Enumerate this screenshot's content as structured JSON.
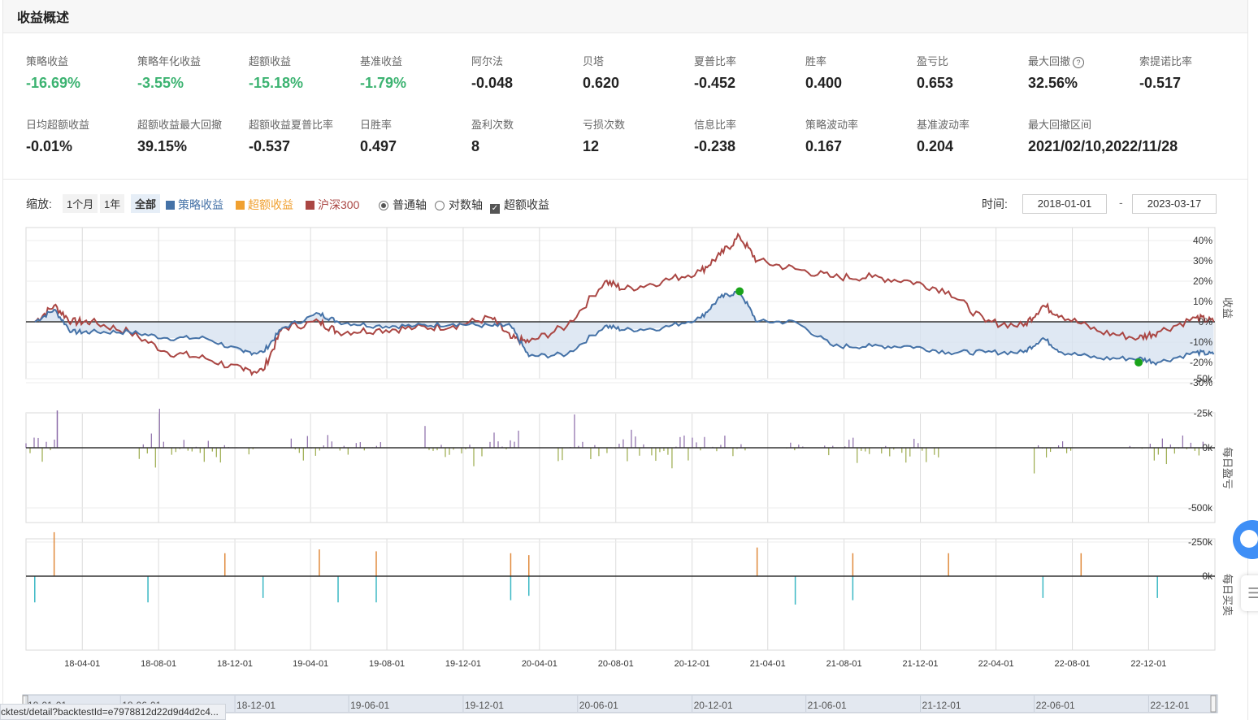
{
  "header": {
    "title": "收益概述"
  },
  "metrics_row1": [
    {
      "label": "策略收益",
      "value": "-16.69%",
      "green": true
    },
    {
      "label": "策略年化收益",
      "value": "-3.55%",
      "green": true
    },
    {
      "label": "超额收益",
      "value": "-15.18%",
      "green": true
    },
    {
      "label": "基准收益",
      "value": "-1.79%",
      "green": true
    },
    {
      "label": "阿尔法",
      "value": "-0.048",
      "green": false
    },
    {
      "label": "贝塔",
      "value": "0.620",
      "green": false
    },
    {
      "label": "夏普比率",
      "value": "-0.452",
      "green": false
    },
    {
      "label": "胜率",
      "value": "0.400",
      "green": false
    },
    {
      "label": "盈亏比",
      "value": "0.653",
      "green": false
    },
    {
      "label": "最大回撤",
      "value": "32.56%",
      "green": false,
      "help": "?"
    },
    {
      "label": "索提诺比率",
      "value": "-0.517",
      "green": false
    }
  ],
  "metrics_row2": [
    {
      "label": "日均超额收益",
      "value": "-0.01%"
    },
    {
      "label": "超额收益最大回撤",
      "value": "39.15%"
    },
    {
      "label": "超额收益夏普比率",
      "value": "-0.537"
    },
    {
      "label": "日胜率",
      "value": "0.497"
    },
    {
      "label": "盈利次数",
      "value": "8"
    },
    {
      "label": "亏损次数",
      "value": "12"
    },
    {
      "label": "信息比率",
      "value": "-0.238"
    },
    {
      "label": "策略波动率",
      "value": "0.167"
    },
    {
      "label": "基准波动率",
      "value": "0.204"
    },
    {
      "label": "最大回撤区间",
      "value": "2021/02/10,2022/11/28"
    }
  ],
  "toolbar": {
    "zoom_label": "缩放:",
    "zoom_options": [
      "1个月",
      "1年",
      "全部"
    ],
    "zoom_active": "全部",
    "legend": [
      {
        "label": "策略收益",
        "color": "#4572a7"
      },
      {
        "label": "超额收益",
        "color": "#f0a030"
      },
      {
        "label": "沪深300",
        "color": "#aa4643"
      }
    ],
    "axis_normal": "普通轴",
    "axis_log": "对数轴",
    "excess_check": "超额收益",
    "time_label": "时间:",
    "date_sep": "-",
    "start_date": "2018-01-01",
    "end_date": "2023-03-17"
  },
  "chart_data": [
    {
      "type": "line",
      "ylabel": "收益",
      "y_ticks": [
        "40%",
        "30%",
        "20%",
        "10%",
        "0%",
        "-10%",
        "-20%",
        "-30%"
      ],
      "ylim": [
        -30,
        40
      ],
      "series": [
        {
          "name": "策略收益",
          "color": "#4572a7",
          "x": [
            "2018-01",
            "2018-02",
            "2018-03",
            "2018-04",
            "2018-06",
            "2018-08",
            "2018-10",
            "2018-12",
            "2019-01",
            "2019-02",
            "2019-04",
            "2019-05",
            "2019-07",
            "2019-09",
            "2019-11",
            "2020-01",
            "2020-02",
            "2020-03",
            "2020-05",
            "2020-07",
            "2020-08",
            "2020-10",
            "2020-12",
            "2021-01",
            "2021-02",
            "2021-03",
            "2021-05",
            "2021-07",
            "2021-09",
            "2021-11",
            "2022-01",
            "2022-03",
            "2022-05",
            "2022-06",
            "2022-07",
            "2022-09",
            "2022-11",
            "2022-12",
            "2023-02",
            "2023-03"
          ],
          "y": [
            0,
            6,
            -5,
            -5,
            -5,
            -8,
            -8,
            -15,
            -15,
            -3,
            4,
            0,
            -2,
            -2,
            -1,
            -2,
            -2,
            -17,
            -16,
            -2,
            -4,
            -3,
            2,
            12,
            15,
            0,
            0,
            -12,
            -12,
            -12,
            -15,
            -15,
            -15,
            -8,
            -15,
            -18,
            -18,
            -20,
            -15,
            -16
          ]
        },
        {
          "name": "沪深300",
          "color": "#aa4643",
          "x": [
            "2018-01",
            "2018-02",
            "2018-03",
            "2018-04",
            "2018-06",
            "2018-08",
            "2018-10",
            "2018-12",
            "2019-01",
            "2019-02",
            "2019-04",
            "2019-05",
            "2019-07",
            "2019-09",
            "2019-11",
            "2020-01",
            "2020-02",
            "2020-03",
            "2020-05",
            "2020-07",
            "2020-08",
            "2020-10",
            "2020-12",
            "2021-01",
            "2021-02",
            "2021-03",
            "2021-05",
            "2021-07",
            "2021-09",
            "2021-11",
            "2022-01",
            "2022-03",
            "2022-05",
            "2022-06",
            "2022-07",
            "2022-09",
            "2022-11",
            "2022-12",
            "2023-02",
            "2023-03"
          ],
          "y": [
            0,
            8,
            0,
            0,
            -5,
            -15,
            -18,
            -24,
            -24,
            -3,
            0,
            -5,
            -4,
            -3,
            -2,
            2,
            -8,
            -10,
            -2,
            20,
            16,
            20,
            25,
            33,
            42,
            30,
            26,
            22,
            22,
            20,
            15,
            0,
            -2,
            8,
            3,
            -5,
            -8,
            -5,
            2,
            0
          ]
        }
      ],
      "markers": [
        {
          "label": "max",
          "x": "2021-02",
          "y": 15
        },
        {
          "label": "min",
          "x": "2022-11",
          "y": -20
        }
      ],
      "x_ticks": [
        "18-04-01",
        "18-08-01",
        "18-12-01",
        "19-04-01",
        "19-08-01",
        "19-12-01",
        "20-04-01",
        "20-08-01",
        "20-12-01",
        "21-04-01",
        "21-08-01",
        "21-12-01",
        "22-04-01",
        "22-08-01",
        "22-12-01"
      ]
    },
    {
      "type": "bar",
      "ylabel": "每日盈亏",
      "y_ticks": [
        "0k",
        "-25k",
        "-50k"
      ],
      "ylim": [
        -50,
        10
      ]
    },
    {
      "type": "bar",
      "ylabel": "每日买卖",
      "y_ticks": [
        "0k",
        "-250k",
        "-500k"
      ],
      "ylim": [
        -500,
        150
      ],
      "buys": [
        {
          "x": "2018-01",
          "v": 120
        },
        {
          "x": "2018-07",
          "v": 120
        },
        {
          "x": "2019-01",
          "v": 100
        },
        {
          "x": "2019-05",
          "v": 120
        },
        {
          "x": "2019-07",
          "v": 120
        },
        {
          "x": "2020-02",
          "v": 110
        },
        {
          "x": "2020-03",
          "v": 90
        },
        {
          "x": "2021-05",
          "v": 130
        },
        {
          "x": "2021-08",
          "v": 110
        },
        {
          "x": "2022-06",
          "v": 100
        },
        {
          "x": "2022-12",
          "v": 100
        }
      ],
      "sells": [
        {
          "x": "2018-02",
          "v": -230
        },
        {
          "x": "2018-11",
          "v": -120
        },
        {
          "x": "2019-04",
          "v": -140
        },
        {
          "x": "2019-07",
          "v": -130
        },
        {
          "x": "2020-02",
          "v": -120
        },
        {
          "x": "2020-03",
          "v": -110
        },
        {
          "x": "2021-03",
          "v": -150
        },
        {
          "x": "2021-08",
          "v": -120
        },
        {
          "x": "2022-01",
          "v": -120
        },
        {
          "x": "2022-08",
          "v": -120
        }
      ]
    }
  ],
  "navigator_ticks": [
    "18-01-01",
    "18-06-01",
    "18-12-01",
    "19-06-01",
    "19-12-01",
    "20-06-01",
    "20-12-01",
    "21-06-01",
    "21-12-01",
    "22-06-01",
    "22-12-01"
  ],
  "status_url": "cktest/detail?backtestId=e7978812d22d9d4d2c4..."
}
